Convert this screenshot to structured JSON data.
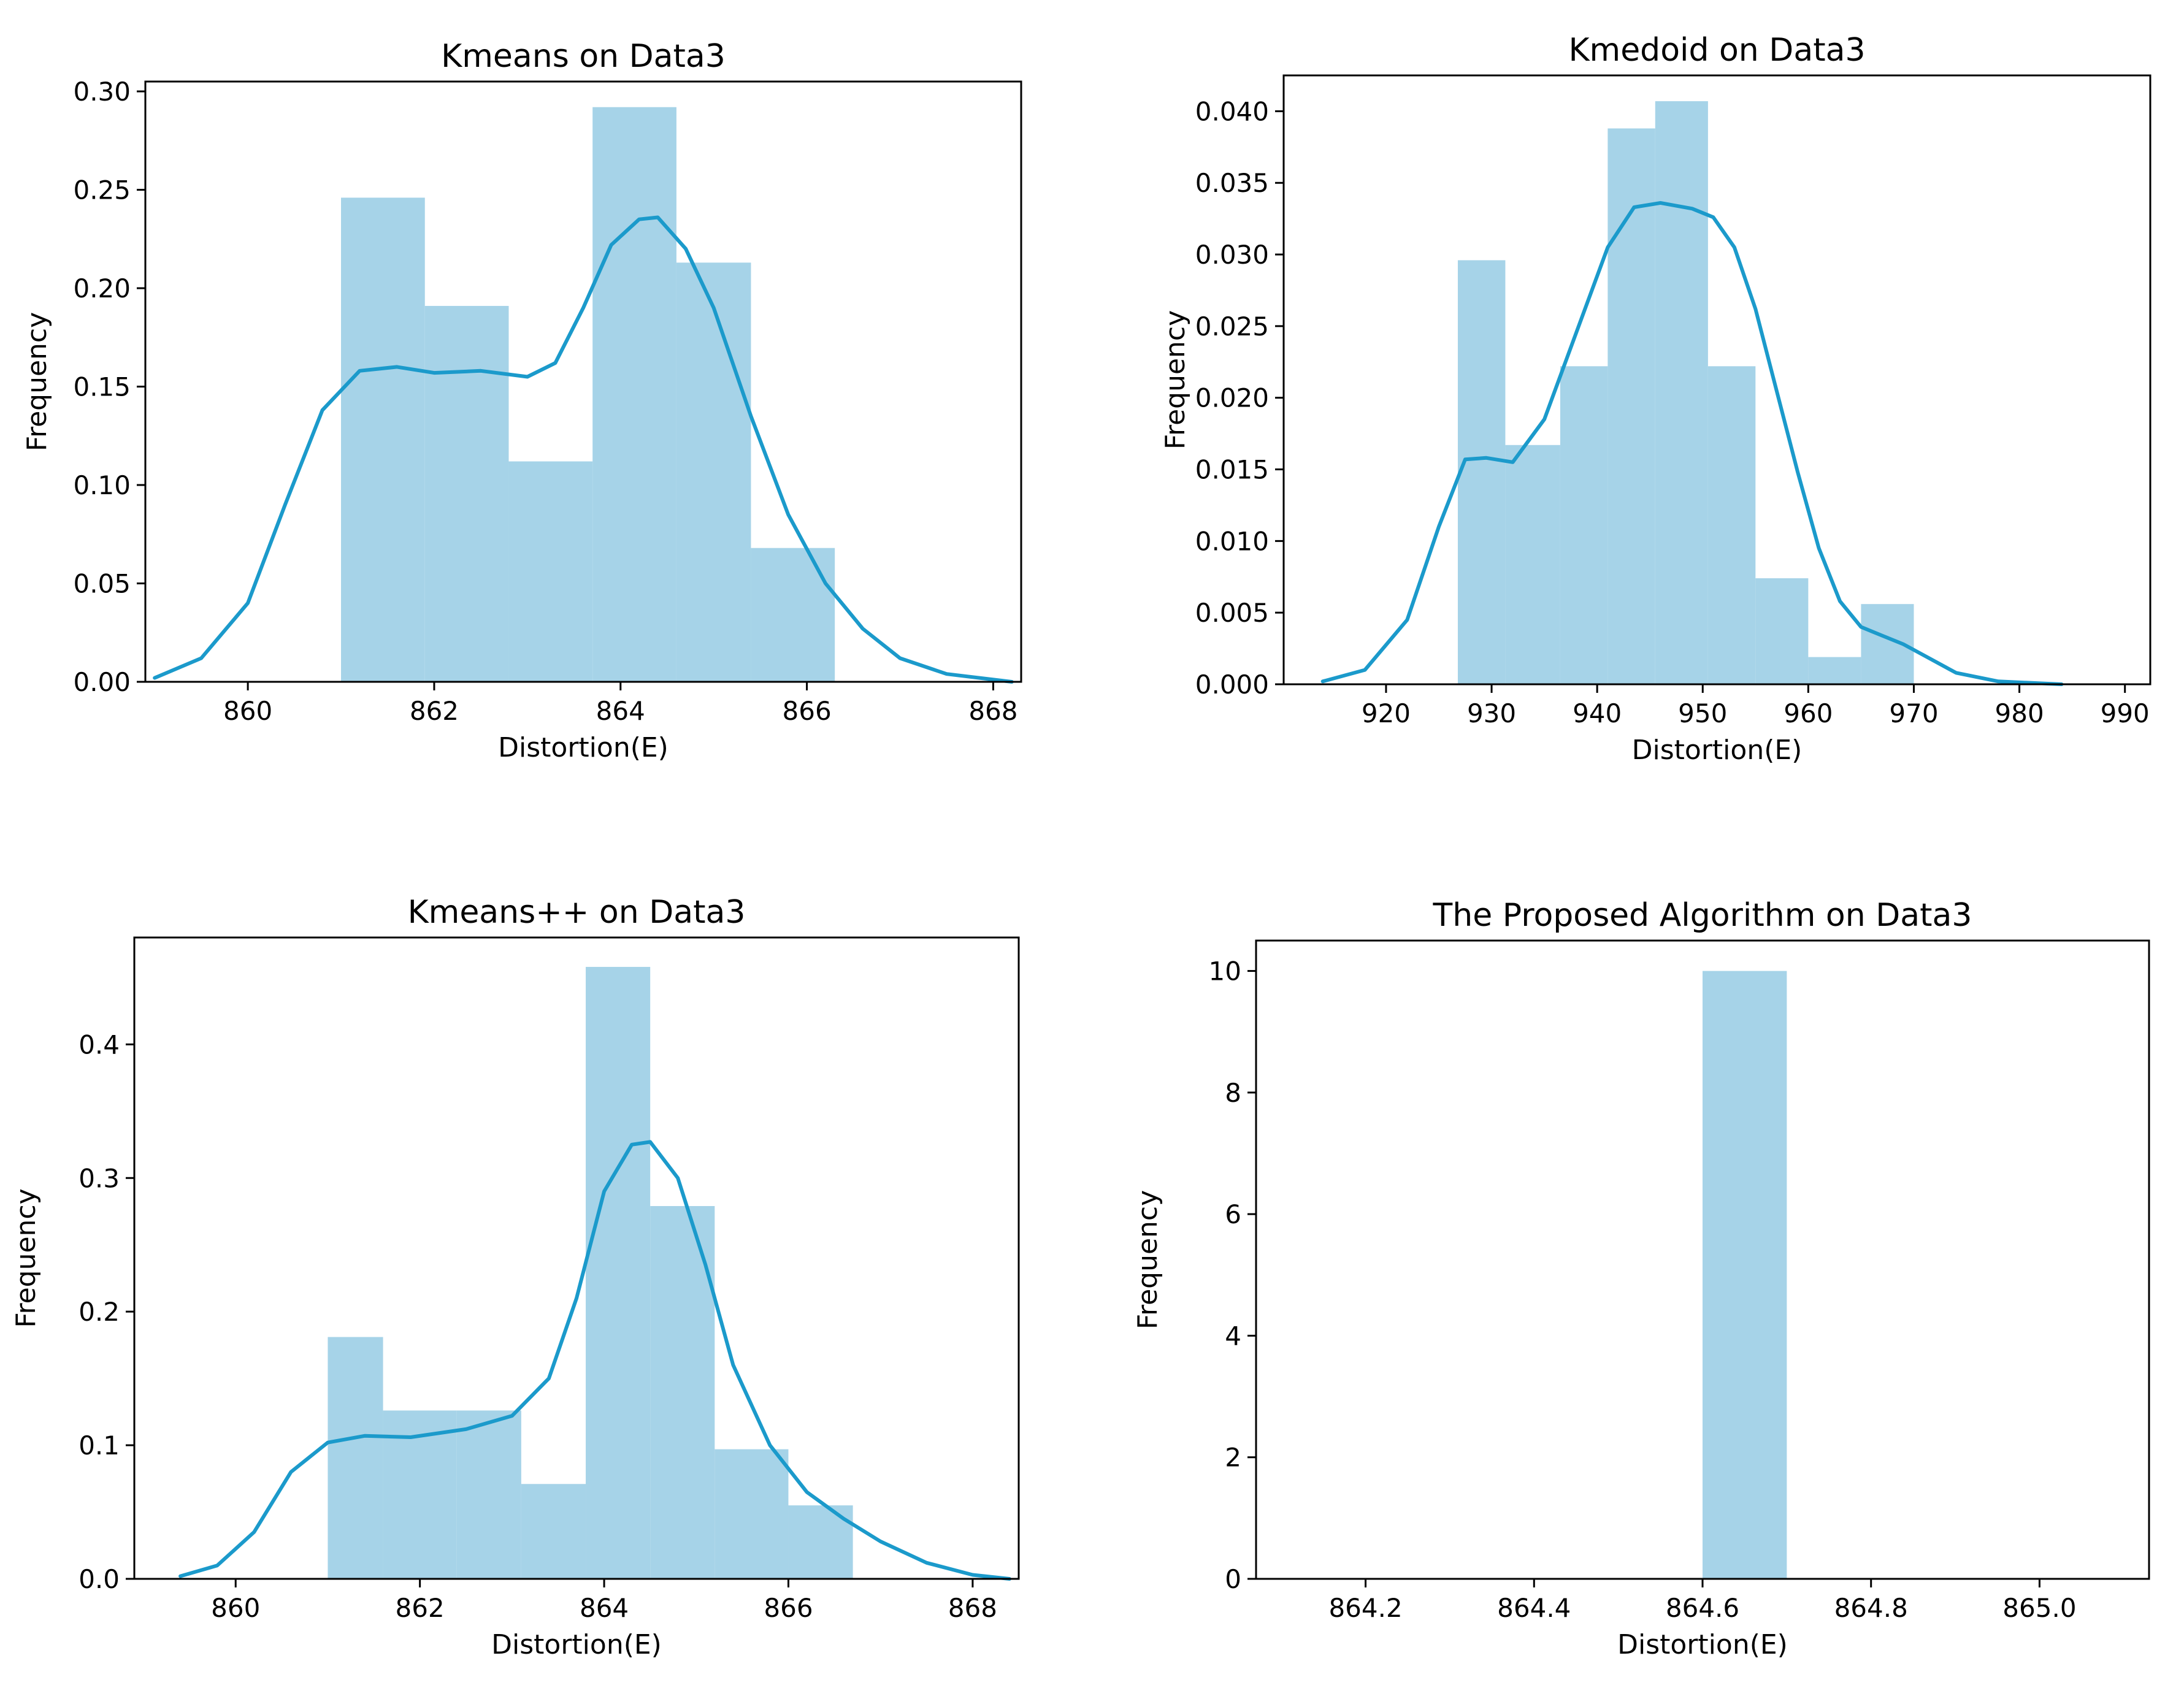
{
  "colors": {
    "bar": "#a6d3e8",
    "kde": "#1b9acb",
    "axis": "#000000",
    "background": "#ffffff"
  },
  "chart_data": [
    {
      "type": "histogram",
      "title": "Kmeans on Data3",
      "xlabel": "Distortion(E)",
      "ylabel": "Frequency",
      "xlim": [
        858.9,
        868.3
      ],
      "ylim": [
        0,
        0.305
      ],
      "xticks": [
        860,
        862,
        864,
        866,
        868
      ],
      "xtick_labels": [
        "860",
        "862",
        "864",
        "866",
        "868"
      ],
      "yticks": [
        0,
        0.05,
        0.1,
        0.15,
        0.2,
        0.25,
        0.3
      ],
      "ytick_labels": [
        "0.00",
        "0.05",
        "0.10",
        "0.15",
        "0.20",
        "0.25",
        "0.30"
      ],
      "bins": [
        {
          "x0": 861.0,
          "x1": 861.9,
          "value": 0.246
        },
        {
          "x0": 861.9,
          "x1": 862.8,
          "value": 0.191
        },
        {
          "x0": 862.8,
          "x1": 863.7,
          "value": 0.112
        },
        {
          "x0": 863.7,
          "x1": 864.6,
          "value": 0.292
        },
        {
          "x0": 864.6,
          "x1": 865.4,
          "value": 0.213
        },
        {
          "x0": 865.4,
          "x1": 866.3,
          "value": 0.068
        }
      ],
      "kde": [
        [
          859.0,
          0.002
        ],
        [
          859.5,
          0.012
        ],
        [
          860.0,
          0.04
        ],
        [
          860.4,
          0.09
        ],
        [
          860.8,
          0.138
        ],
        [
          861.2,
          0.158
        ],
        [
          861.6,
          0.16
        ],
        [
          862.0,
          0.157
        ],
        [
          862.5,
          0.158
        ],
        [
          863.0,
          0.155
        ],
        [
          863.3,
          0.162
        ],
        [
          863.6,
          0.19
        ],
        [
          863.9,
          0.222
        ],
        [
          864.2,
          0.235
        ],
        [
          864.4,
          0.236
        ],
        [
          864.7,
          0.22
        ],
        [
          865.0,
          0.19
        ],
        [
          865.4,
          0.135
        ],
        [
          865.8,
          0.085
        ],
        [
          866.2,
          0.05
        ],
        [
          866.6,
          0.027
        ],
        [
          867.0,
          0.012
        ],
        [
          867.5,
          0.004
        ],
        [
          868.2,
          0.0
        ]
      ]
    },
    {
      "type": "histogram",
      "title": "Kmedoid on Data3",
      "xlabel": "Distortion(E)",
      "ylabel": "Frequency",
      "xlim": [
        910.3,
        992.4
      ],
      "ylim": [
        0,
        0.0425
      ],
      "xticks": [
        920,
        930,
        940,
        950,
        960,
        970,
        980,
        990
      ],
      "xtick_labels": [
        "920",
        "930",
        "940",
        "950",
        "960",
        "970",
        "980",
        "990"
      ],
      "yticks": [
        0,
        0.005,
        0.01,
        0.015,
        0.02,
        0.025,
        0.03,
        0.035,
        0.04
      ],
      "ytick_labels": [
        "0.000",
        "0.005",
        "0.010",
        "0.015",
        "0.020",
        "0.025",
        "0.030",
        "0.035",
        "0.040"
      ],
      "bins": [
        {
          "x0": 926.8,
          "x1": 931.3,
          "value": 0.0296
        },
        {
          "x0": 931.3,
          "x1": 936.5,
          "value": 0.0167
        },
        {
          "x0": 936.5,
          "x1": 941.0,
          "value": 0.0222
        },
        {
          "x0": 941.0,
          "x1": 945.5,
          "value": 0.0388
        },
        {
          "x0": 945.5,
          "x1": 950.5,
          "value": 0.0407
        },
        {
          "x0": 950.5,
          "x1": 955.0,
          "value": 0.0222
        },
        {
          "x0": 955.0,
          "x1": 960.0,
          "value": 0.0074
        },
        {
          "x0": 960.0,
          "x1": 965.0,
          "value": 0.0019
        },
        {
          "x0": 965.0,
          "x1": 970.0,
          "value": 0.0056
        }
      ],
      "kde": [
        [
          914.0,
          0.0002
        ],
        [
          918.0,
          0.001
        ],
        [
          922.0,
          0.0045
        ],
        [
          925.0,
          0.011
        ],
        [
          927.5,
          0.0157
        ],
        [
          929.5,
          0.0158
        ],
        [
          932.0,
          0.0155
        ],
        [
          935.0,
          0.0185
        ],
        [
          938.0,
          0.0245
        ],
        [
          941.0,
          0.0305
        ],
        [
          943.5,
          0.0333
        ],
        [
          946.0,
          0.0336
        ],
        [
          949.0,
          0.0332
        ],
        [
          951.0,
          0.0326
        ],
        [
          953.0,
          0.0305
        ],
        [
          955.0,
          0.0262
        ],
        [
          957.0,
          0.0205
        ],
        [
          959.0,
          0.0148
        ],
        [
          961.0,
          0.0095
        ],
        [
          963.0,
          0.0058
        ],
        [
          965.0,
          0.004
        ],
        [
          967.0,
          0.0034
        ],
        [
          969.0,
          0.0028
        ],
        [
          971.0,
          0.002
        ],
        [
          974.0,
          0.0008
        ],
        [
          978.0,
          0.0002
        ],
        [
          984.0,
          0.0
        ]
      ]
    },
    {
      "type": "histogram",
      "title": "Kmeans++ on Data3",
      "xlabel": "Distortion(E)",
      "ylabel": "Frequency",
      "xlim": [
        858.9,
        868.5
      ],
      "ylim": [
        0,
        0.48
      ],
      "xticks": [
        860,
        862,
        864,
        866,
        868
      ],
      "xtick_labels": [
        "860",
        "862",
        "864",
        "866",
        "868"
      ],
      "yticks": [
        0,
        0.1,
        0.2,
        0.3,
        0.4
      ],
      "ytick_labels": [
        "0.0",
        "0.1",
        "0.2",
        "0.3",
        "0.4"
      ],
      "bins": [
        {
          "x0": 861.0,
          "x1": 861.6,
          "value": 0.181
        },
        {
          "x0": 861.6,
          "x1": 862.4,
          "value": 0.126
        },
        {
          "x0": 862.4,
          "x1": 863.1,
          "value": 0.126
        },
        {
          "x0": 863.1,
          "x1": 863.8,
          "value": 0.071
        },
        {
          "x0": 863.8,
          "x1": 864.5,
          "value": 0.458
        },
        {
          "x0": 864.5,
          "x1": 865.2,
          "value": 0.279
        },
        {
          "x0": 865.2,
          "x1": 866.0,
          "value": 0.097
        },
        {
          "x0": 866.0,
          "x1": 866.7,
          "value": 0.055
        }
      ],
      "kde": [
        [
          859.4,
          0.002
        ],
        [
          859.8,
          0.01
        ],
        [
          860.2,
          0.035
        ],
        [
          860.6,
          0.08
        ],
        [
          861.0,
          0.102
        ],
        [
          861.4,
          0.107
        ],
        [
          861.9,
          0.106
        ],
        [
          862.5,
          0.112
        ],
        [
          863.0,
          0.122
        ],
        [
          863.4,
          0.15
        ],
        [
          863.7,
          0.21
        ],
        [
          864.0,
          0.29
        ],
        [
          864.3,
          0.325
        ],
        [
          864.5,
          0.327
        ],
        [
          864.8,
          0.3
        ],
        [
          865.1,
          0.235
        ],
        [
          865.4,
          0.16
        ],
        [
          865.8,
          0.1
        ],
        [
          866.2,
          0.065
        ],
        [
          866.6,
          0.045
        ],
        [
          867.0,
          0.028
        ],
        [
          867.5,
          0.012
        ],
        [
          868.0,
          0.003
        ],
        [
          868.4,
          0.0
        ]
      ]
    },
    {
      "type": "histogram",
      "title": "The Proposed Algorithm on Data3",
      "xlabel": "Distortion(E)",
      "ylabel": "Frequency",
      "xlim": [
        864.07,
        865.13
      ],
      "ylim": [
        0,
        10.5
      ],
      "xticks": [
        864.2,
        864.4,
        864.6,
        864.8,
        865.0
      ],
      "xtick_labels": [
        "864.2",
        "864.4",
        "864.6",
        "864.8",
        "865.0"
      ],
      "yticks": [
        0,
        2,
        4,
        6,
        8,
        10
      ],
      "ytick_labels": [
        "0",
        "2",
        "4",
        "6",
        "8",
        "10"
      ],
      "bins": [
        {
          "x0": 864.6,
          "x1": 864.7,
          "value": 10
        }
      ],
      "kde": []
    }
  ]
}
